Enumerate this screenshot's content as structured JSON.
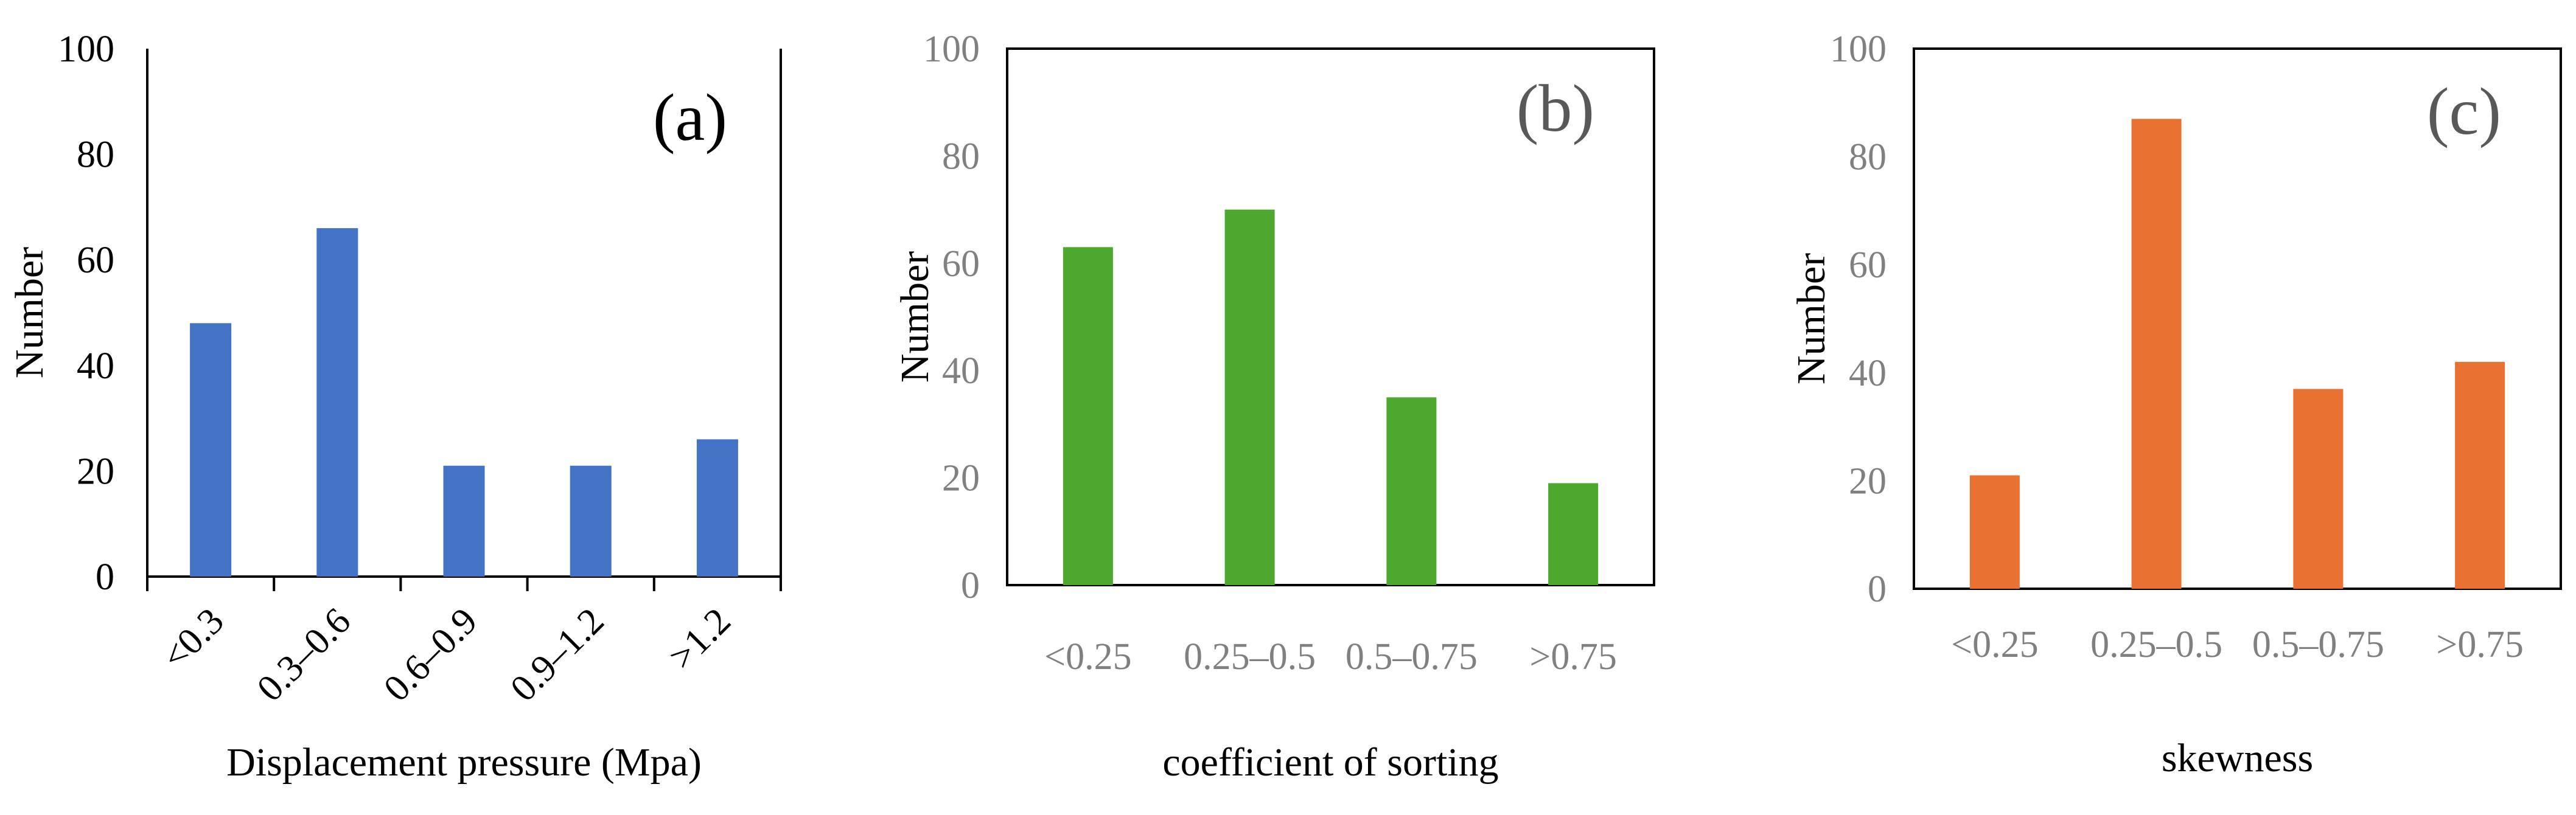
{
  "chart_data": [
    {
      "type": "bar",
      "panel_label": "(a)",
      "categories": [
        "<0.3",
        "0.3–0.6",
        "0.6–0.9",
        "0.9–1.2",
        ">1.2"
      ],
      "values": [
        48,
        66,
        21,
        21,
        26
      ],
      "xlabel": "Displacement pressure (Mpa)",
      "ylabel": "Number",
      "ylim": [
        0,
        100
      ],
      "yticks": [
        "0",
        "20",
        "40",
        "60",
        "80",
        "100"
      ],
      "color": "#4472C4",
      "frame": "open",
      "tick_label_color": "#000000",
      "xtick_rotation": -45
    },
    {
      "type": "bar",
      "panel_label": "(b)",
      "categories": [
        "<0.25",
        "0.25–0.5",
        "0.5–0.75",
        ">0.75"
      ],
      "values": [
        63,
        70,
        35,
        19
      ],
      "xlabel": "coefficient of sorting",
      "ylabel": "Number",
      "ylim": [
        0,
        100
      ],
      "yticks": [
        "0",
        "20",
        "40",
        "60",
        "80",
        "100"
      ],
      "color": "#4EA72E",
      "frame": "box",
      "tick_label_color": "#808080",
      "xtick_rotation": 0
    },
    {
      "type": "bar",
      "panel_label": "(c)",
      "categories": [
        "<0.25",
        "0.25–0.5",
        "0.5–0.75",
        ">0.75"
      ],
      "values": [
        21,
        87,
        37,
        42
      ],
      "xlabel": "skewness",
      "ylabel": "Number",
      "ylim": [
        0,
        100
      ],
      "yticks": [
        "0",
        "20",
        "40",
        "60",
        "80",
        "100"
      ],
      "color": "#E97132",
      "frame": "box",
      "tick_label_color": "#808080",
      "xtick_rotation": 0
    }
  ]
}
